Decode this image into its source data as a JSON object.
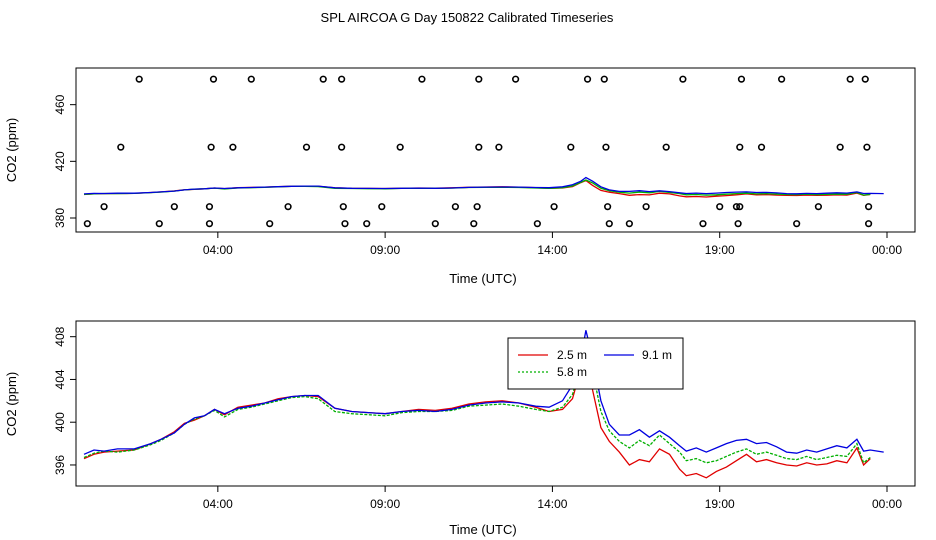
{
  "chart_data": [
    {
      "type": "scatter",
      "title": "SPL AIRCOA G  Day 150822  Calibrated Timeseries",
      "xlabel": "Time (UTC)",
      "ylabel": "CO2 (ppm)",
      "xlim": [
        0,
        24
      ],
      "ylim": [
        374,
        482
      ],
      "x_ticks": [
        {
          "value": 4,
          "label": "04:00"
        },
        {
          "value": 9,
          "label": "09:00"
        },
        {
          "value": 14,
          "label": "14:00"
        },
        {
          "value": 19,
          "label": "19:00"
        },
        {
          "value": 24,
          "label": "00:00"
        }
      ],
      "y_ticks": [
        {
          "value": 380,
          "label": "380"
        },
        {
          "value": 420,
          "label": "420"
        },
        {
          "value": 460,
          "label": "460"
        }
      ],
      "points": [
        [
          1.65,
          478
        ],
        [
          3.87,
          478
        ],
        [
          5.0,
          478
        ],
        [
          7.15,
          478
        ],
        [
          7.7,
          478
        ],
        [
          10.1,
          478
        ],
        [
          11.8,
          478
        ],
        [
          12.9,
          478
        ],
        [
          15.05,
          478
        ],
        [
          15.55,
          478
        ],
        [
          17.9,
          478
        ],
        [
          19.65,
          478
        ],
        [
          20.85,
          478
        ],
        [
          22.9,
          478
        ],
        [
          23.35,
          478
        ],
        [
          1.1,
          430
        ],
        [
          3.8,
          430
        ],
        [
          4.45,
          430
        ],
        [
          6.65,
          430
        ],
        [
          7.7,
          430
        ],
        [
          9.45,
          430
        ],
        [
          11.8,
          430
        ],
        [
          12.4,
          430
        ],
        [
          14.55,
          430
        ],
        [
          15.6,
          430
        ],
        [
          17.4,
          430
        ],
        [
          19.6,
          430
        ],
        [
          20.25,
          430
        ],
        [
          22.6,
          430
        ],
        [
          23.4,
          430
        ],
        [
          0.6,
          388
        ],
        [
          2.7,
          388
        ],
        [
          3.75,
          388
        ],
        [
          6.1,
          388
        ],
        [
          7.75,
          388
        ],
        [
          8.9,
          388
        ],
        [
          11.1,
          388
        ],
        [
          11.75,
          388
        ],
        [
          14.05,
          388
        ],
        [
          15.65,
          388
        ],
        [
          16.8,
          388
        ],
        [
          19.0,
          388
        ],
        [
          19.5,
          388
        ],
        [
          19.6,
          388
        ],
        [
          21.95,
          388
        ],
        [
          23.45,
          388
        ],
        [
          0.1,
          376
        ],
        [
          2.25,
          376
        ],
        [
          3.75,
          376
        ],
        [
          5.55,
          376
        ],
        [
          7.8,
          376
        ],
        [
          8.45,
          376
        ],
        [
          10.5,
          376
        ],
        [
          11.65,
          376
        ],
        [
          13.55,
          376
        ],
        [
          15.7,
          376
        ],
        [
          16.3,
          376
        ],
        [
          18.5,
          376
        ],
        [
          19.55,
          376
        ],
        [
          21.3,
          376
        ],
        [
          23.45,
          376
        ]
      ]
    },
    {
      "type": "line",
      "xlabel": "Time (UTC)",
      "ylabel": "CO2 (ppm)",
      "xlim": [
        0,
        24
      ],
      "ylim": [
        394.5,
        409
      ],
      "x_ticks": [
        {
          "value": 4,
          "label": "04:00"
        },
        {
          "value": 9,
          "label": "09:00"
        },
        {
          "value": 14,
          "label": "14:00"
        },
        {
          "value": 19,
          "label": "19:00"
        },
        {
          "value": 24,
          "label": "00:00"
        }
      ],
      "y_ticks": [
        {
          "value": 396,
          "label": "396"
        },
        {
          "value": 400,
          "label": "400"
        },
        {
          "value": 404,
          "label": "404"
        },
        {
          "value": 408,
          "label": "408"
        }
      ],
      "series": [
        {
          "name": "2.5 m",
          "color": "#e00000",
          "x": [
            0,
            0.3,
            0.6,
            1.0,
            1.5,
            2.0,
            2.3,
            2.7,
            3.0,
            3.3,
            3.6,
            3.9,
            4.2,
            4.6,
            5.0,
            5.4,
            5.8,
            6.2,
            6.6,
            7.0,
            7.5,
            8.0,
            8.5,
            9.0,
            9.5,
            10.0,
            10.5,
            11.0,
            11.5,
            12.0,
            12.5,
            13.0,
            13.5,
            13.9,
            14.3,
            14.6,
            14.85,
            15.0,
            15.2,
            15.45,
            15.7,
            16.0,
            16.3,
            16.6,
            16.9,
            17.2,
            17.5,
            17.8,
            18.0,
            18.3,
            18.6,
            18.9,
            19.2,
            19.5,
            19.8,
            20.1,
            20.4,
            20.7,
            21.0,
            21.3,
            21.6,
            21.9,
            22.2,
            22.5,
            22.8,
            23.1,
            23.3,
            23.5
          ],
          "y": [
            396.6,
            397.0,
            397.2,
            397.3,
            397.4,
            398.0,
            398.4,
            399.1,
            399.9,
            400.2,
            400.6,
            401.2,
            400.7,
            401.4,
            401.6,
            401.8,
            402.2,
            402.4,
            402.5,
            402.4,
            401.3,
            401.0,
            400.9,
            400.8,
            401.0,
            401.2,
            401.1,
            401.3,
            401.7,
            401.9,
            402.0,
            401.8,
            401.4,
            401.0,
            401.2,
            402.2,
            405.0,
            406.5,
            403.0,
            399.5,
            398.2,
            397.2,
            396.0,
            396.5,
            396.3,
            397.5,
            397.0,
            395.6,
            395.0,
            395.2,
            394.8,
            395.4,
            395.8,
            396.4,
            397.0,
            396.3,
            396.5,
            396.2,
            396.0,
            395.9,
            396.2,
            396.0,
            396.1,
            396.4,
            396.2,
            397.6,
            396.0,
            396.6
          ]
        },
        {
          "name": "5.8 m",
          "color": "#00b000",
          "x": [
            0,
            0.3,
            0.6,
            1.0,
            1.5,
            2.0,
            2.3,
            2.7,
            3.0,
            3.3,
            3.6,
            3.9,
            4.2,
            4.6,
            5.0,
            5.4,
            5.8,
            6.2,
            6.6,
            7.0,
            7.5,
            8.0,
            8.5,
            9.0,
            9.5,
            10.0,
            10.5,
            11.0,
            11.5,
            12.0,
            12.5,
            13.0,
            13.5,
            13.9,
            14.3,
            14.6,
            14.85,
            15.0,
            15.2,
            15.45,
            15.7,
            16.0,
            16.3,
            16.6,
            16.9,
            17.2,
            17.5,
            17.8,
            18.0,
            18.3,
            18.6,
            18.9,
            19.2,
            19.5,
            19.8,
            20.1,
            20.4,
            20.7,
            21.0,
            21.3,
            21.6,
            21.9,
            22.2,
            22.5,
            22.8,
            23.1,
            23.3,
            23.5
          ],
          "y": [
            396.7,
            397.1,
            397.3,
            397.2,
            397.4,
            397.9,
            398.3,
            399.0,
            399.8,
            400.3,
            400.6,
            401.1,
            400.5,
            401.2,
            401.4,
            401.7,
            402.0,
            402.3,
            402.4,
            402.2,
            401.0,
            400.8,
            400.7,
            400.6,
            400.9,
            401.0,
            401.0,
            401.1,
            401.5,
            401.6,
            401.7,
            401.5,
            401.2,
            401.0,
            401.4,
            402.6,
            405.2,
            406.8,
            404.8,
            401.0,
            399.2,
            398.2,
            397.6,
            398.3,
            397.8,
            398.8,
            398.0,
            397.2,
            396.4,
            396.6,
            396.2,
            396.4,
            396.8,
            397.2,
            397.5,
            397.0,
            397.2,
            396.9,
            396.6,
            396.5,
            396.8,
            396.5,
            396.7,
            396.9,
            396.8,
            398.0,
            396.2,
            396.7
          ]
        },
        {
          "name": "9.1 m",
          "color": "#0000e0",
          "x": [
            0,
            0.3,
            0.6,
            1.0,
            1.5,
            2.0,
            2.3,
            2.7,
            3.0,
            3.3,
            3.6,
            3.9,
            4.2,
            4.6,
            5.0,
            5.4,
            5.8,
            6.2,
            6.6,
            7.0,
            7.5,
            8.0,
            8.5,
            9.0,
            9.5,
            10.0,
            10.5,
            11.0,
            11.5,
            12.0,
            12.5,
            13.0,
            13.5,
            13.9,
            14.3,
            14.6,
            14.85,
            15.0,
            15.2,
            15.45,
            15.7,
            16.0,
            16.3,
            16.6,
            16.9,
            17.2,
            17.5,
            17.8,
            18.0,
            18.3,
            18.6,
            18.9,
            19.2,
            19.5,
            19.8,
            20.1,
            20.4,
            20.7,
            21.0,
            21.3,
            21.6,
            21.9,
            22.2,
            22.5,
            22.8,
            23.1,
            23.3,
            23.5,
            23.9
          ],
          "y": [
            397.0,
            397.4,
            397.3,
            397.5,
            397.5,
            398.0,
            398.4,
            399.0,
            399.8,
            400.4,
            400.6,
            401.2,
            400.8,
            401.3,
            401.5,
            401.8,
            402.1,
            402.4,
            402.5,
            402.5,
            401.3,
            401.0,
            400.9,
            400.8,
            401.0,
            401.1,
            401.0,
            401.2,
            401.6,
            401.8,
            401.9,
            401.8,
            401.5,
            401.4,
            402.0,
            403.5,
            406.0,
            408.6,
            406.0,
            402.0,
            399.8,
            398.8,
            398.8,
            399.3,
            398.6,
            399.2,
            398.6,
            397.8,
            397.3,
            397.6,
            397.2,
            397.6,
            398.0,
            398.3,
            398.4,
            398.0,
            398.1,
            397.7,
            397.2,
            397.1,
            397.4,
            397.2,
            397.5,
            397.8,
            397.6,
            398.4,
            397.3,
            397.4,
            397.2
          ]
        }
      ]
    }
  ]
}
